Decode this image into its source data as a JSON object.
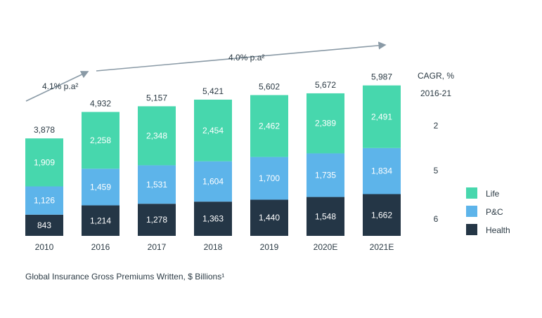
{
  "caption": "Global Insurance Gross Premiums Written, $ Billions¹",
  "growth_labels": {
    "early": "4.1% p.a²",
    "late": "4.0% p.a²"
  },
  "cagr": {
    "header_line1": "CAGR, %",
    "header_line2": "2016-21",
    "values": [
      {
        "series": "Life",
        "value": "2"
      },
      {
        "series": "P&C",
        "value": "5"
      },
      {
        "series": "Health",
        "value": "6"
      }
    ]
  },
  "legend": [
    {
      "name": "Life",
      "color": "#47d7ad"
    },
    {
      "name": "P&C",
      "color": "#5db4ea"
    },
    {
      "name": "Health",
      "color": "#243646"
    }
  ],
  "chart_data": {
    "type": "bar",
    "stacked": true,
    "categories": [
      "2010",
      "2016",
      "2017",
      "2018",
      "2019",
      "2020E",
      "2021E"
    ],
    "series": [
      {
        "name": "Health",
        "color": "#243646",
        "values": [
          843,
          1214,
          1278,
          1363,
          1440,
          1548,
          1662
        ]
      },
      {
        "name": "P&C",
        "color": "#5db4ea",
        "values": [
          1126,
          1459,
          1531,
          1604,
          1700,
          1735,
          1834
        ]
      },
      {
        "name": "Life",
        "color": "#47d7ad",
        "values": [
          1909,
          2258,
          2348,
          2454,
          2462,
          2389,
          2491
        ]
      }
    ],
    "totals": [
      3878,
      4932,
      5157,
      5421,
      5602,
      5672,
      5987
    ],
    "legend_position": "right",
    "grid": false
  }
}
